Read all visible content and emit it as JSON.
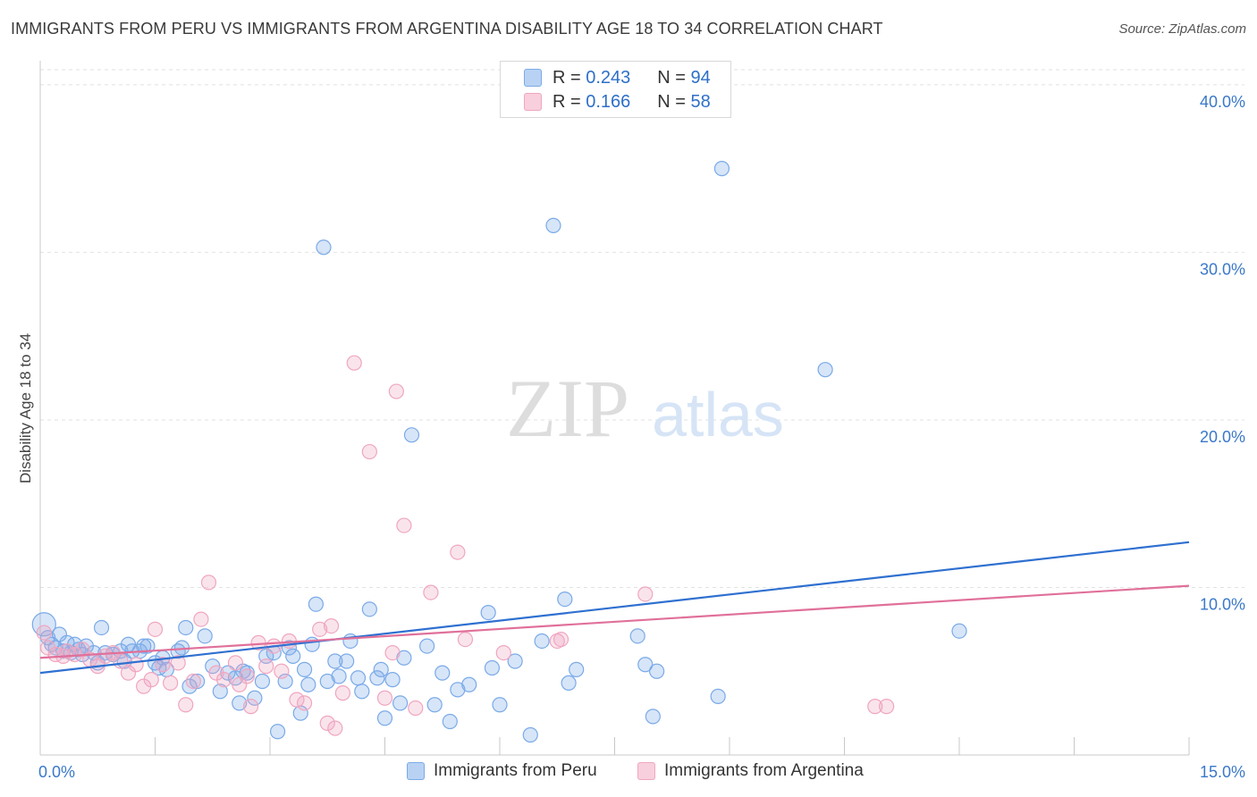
{
  "title": "IMMIGRANTS FROM PERU VS IMMIGRANTS FROM ARGENTINA DISABILITY AGE 18 TO 34 CORRELATION CHART",
  "source": "Source: ZipAtlas.com",
  "watermark": {
    "zip": "ZIP",
    "atlas": "atlas"
  },
  "legend": {
    "rows": [
      {
        "r_label": "R =",
        "r_value": "0.243",
        "n_label": "N =",
        "n_value": "94"
      },
      {
        "r_label": "R =",
        "r_value": "0.166",
        "n_label": "N =",
        "n_value": "58"
      }
    ]
  },
  "chart_data": {
    "type": "scatter",
    "ylabel": "Disability Age 18 to 34",
    "xlim": [
      0,
      15
    ],
    "ylim": [
      0,
      40
    ],
    "x_tick_labels": [
      "0.0%",
      "15.0%"
    ],
    "y_tick_labels": [
      "10.0%",
      "20.0%",
      "30.0%",
      "40.0%"
    ],
    "y_ticks": [
      10,
      20,
      30,
      40
    ],
    "grid": true,
    "legend_position": "top-center",
    "series": [
      {
        "name": "Immigrants from Peru",
        "color": "#7aaae8",
        "line_color": "#2f70d0",
        "r": 0.243,
        "n": 94,
        "trend": [
          [
            0,
            4.9
          ],
          [
            15,
            12.7
          ]
        ],
        "points": [
          [
            0.05,
            7.8
          ],
          [
            0.1,
            7.0
          ],
          [
            0.15,
            6.6
          ],
          [
            0.2,
            6.4
          ],
          [
            0.25,
            7.2
          ],
          [
            0.3,
            6.2
          ],
          [
            0.35,
            6.7
          ],
          [
            0.4,
            6.1
          ],
          [
            0.45,
            6.6
          ],
          [
            0.5,
            6.3
          ],
          [
            0.55,
            6.0
          ],
          [
            0.6,
            6.5
          ],
          [
            0.7,
            6.1
          ],
          [
            0.75,
            5.5
          ],
          [
            0.8,
            7.6
          ],
          [
            0.85,
            6.1
          ],
          [
            0.95,
            6.0
          ],
          [
            1.05,
            6.2
          ],
          [
            1.1,
            5.6
          ],
          [
            1.15,
            6.6
          ],
          [
            1.2,
            6.2
          ],
          [
            1.3,
            6.2
          ],
          [
            1.35,
            6.5
          ],
          [
            1.4,
            6.5
          ],
          [
            1.5,
            5.5
          ],
          [
            1.55,
            5.2
          ],
          [
            1.6,
            5.8
          ],
          [
            1.65,
            5.1
          ],
          [
            1.8,
            6.2
          ],
          [
            1.85,
            6.4
          ],
          [
            1.9,
            7.6
          ],
          [
            1.95,
            4.1
          ],
          [
            2.05,
            4.4
          ],
          [
            2.15,
            7.1
          ],
          [
            2.25,
            5.3
          ],
          [
            2.35,
            3.8
          ],
          [
            2.45,
            4.9
          ],
          [
            2.55,
            4.6
          ],
          [
            2.6,
            3.1
          ],
          [
            2.65,
            5.0
          ],
          [
            2.7,
            4.9
          ],
          [
            2.8,
            3.4
          ],
          [
            2.9,
            4.4
          ],
          [
            2.95,
            5.9
          ],
          [
            3.05,
            6.1
          ],
          [
            3.1,
            1.4
          ],
          [
            3.2,
            4.4
          ],
          [
            3.25,
            6.4
          ],
          [
            3.3,
            5.9
          ],
          [
            3.4,
            2.5
          ],
          [
            3.45,
            5.1
          ],
          [
            3.5,
            4.2
          ],
          [
            3.55,
            6.6
          ],
          [
            3.6,
            9.0
          ],
          [
            3.7,
            30.3
          ],
          [
            3.75,
            4.4
          ],
          [
            3.85,
            5.6
          ],
          [
            3.9,
            4.7
          ],
          [
            4.0,
            5.6
          ],
          [
            4.05,
            6.8
          ],
          [
            4.15,
            4.6
          ],
          [
            4.2,
            3.8
          ],
          [
            4.3,
            8.7
          ],
          [
            4.4,
            4.6
          ],
          [
            4.45,
            5.1
          ],
          [
            4.5,
            2.2
          ],
          [
            4.6,
            4.5
          ],
          [
            4.7,
            3.1
          ],
          [
            4.75,
            5.8
          ],
          [
            4.85,
            19.1
          ],
          [
            5.05,
            6.5
          ],
          [
            5.15,
            3.0
          ],
          [
            5.35,
            2.0
          ],
          [
            5.45,
            3.9
          ],
          [
            5.6,
            4.2
          ],
          [
            5.85,
            8.5
          ],
          [
            5.9,
            5.2
          ],
          [
            6.0,
            3.0
          ],
          [
            6.2,
            5.6
          ],
          [
            6.4,
            1.2
          ],
          [
            6.55,
            6.8
          ],
          [
            6.7,
            31.6
          ],
          [
            6.85,
            9.3
          ],
          [
            6.9,
            4.3
          ],
          [
            7.0,
            5.1
          ],
          [
            7.8,
            7.1
          ],
          [
            8.0,
            2.3
          ],
          [
            8.05,
            5.0
          ],
          [
            8.9,
            35.0
          ],
          [
            8.85,
            3.5
          ],
          [
            10.25,
            23.0
          ],
          [
            12.0,
            7.4
          ],
          [
            7.9,
            5.4
          ],
          [
            5.25,
            4.9
          ]
        ]
      },
      {
        "name": "Immigrants from Argentina",
        "color": "#f0a6c0",
        "line_color": "#e0709a",
        "r": 0.166,
        "n": 58,
        "trend": [
          [
            0,
            5.8
          ],
          [
            15,
            10.1
          ]
        ],
        "points": [
          [
            0.05,
            7.3
          ],
          [
            0.1,
            6.4
          ],
          [
            0.2,
            6.0
          ],
          [
            0.3,
            5.9
          ],
          [
            0.35,
            6.2
          ],
          [
            0.45,
            6.0
          ],
          [
            0.55,
            6.3
          ],
          [
            0.65,
            5.7
          ],
          [
            0.75,
            5.3
          ],
          [
            0.85,
            5.9
          ],
          [
            0.95,
            6.1
          ],
          [
            1.05,
            5.6
          ],
          [
            1.15,
            4.9
          ],
          [
            1.25,
            5.4
          ],
          [
            1.35,
            4.1
          ],
          [
            1.45,
            4.5
          ],
          [
            1.5,
            7.5
          ],
          [
            1.6,
            5.4
          ],
          [
            1.7,
            4.3
          ],
          [
            1.8,
            5.5
          ],
          [
            1.9,
            3.0
          ],
          [
            2.0,
            4.4
          ],
          [
            2.1,
            8.1
          ],
          [
            2.2,
            10.3
          ],
          [
            2.3,
            4.9
          ],
          [
            2.4,
            4.5
          ],
          [
            2.55,
            5.5
          ],
          [
            2.6,
            4.2
          ],
          [
            2.7,
            4.7
          ],
          [
            2.75,
            2.9
          ],
          [
            2.85,
            6.7
          ],
          [
            2.95,
            5.3
          ],
          [
            3.05,
            6.5
          ],
          [
            3.15,
            5.0
          ],
          [
            3.25,
            6.8
          ],
          [
            3.35,
            3.3
          ],
          [
            3.45,
            3.1
          ],
          [
            3.65,
            7.5
          ],
          [
            3.75,
            1.9
          ],
          [
            3.8,
            7.7
          ],
          [
            3.85,
            1.6
          ],
          [
            3.95,
            3.7
          ],
          [
            4.1,
            23.4
          ],
          [
            4.3,
            18.1
          ],
          [
            4.5,
            3.4
          ],
          [
            4.6,
            6.1
          ],
          [
            4.65,
            21.7
          ],
          [
            4.75,
            13.7
          ],
          [
            4.9,
            2.8
          ],
          [
            5.1,
            9.7
          ],
          [
            5.45,
            12.1
          ],
          [
            6.05,
            6.1
          ],
          [
            6.75,
            6.8
          ],
          [
            6.8,
            6.9
          ],
          [
            7.9,
            9.6
          ],
          [
            10.9,
            2.9
          ],
          [
            11.05,
            2.9
          ],
          [
            5.55,
            6.9
          ]
        ]
      }
    ]
  }
}
